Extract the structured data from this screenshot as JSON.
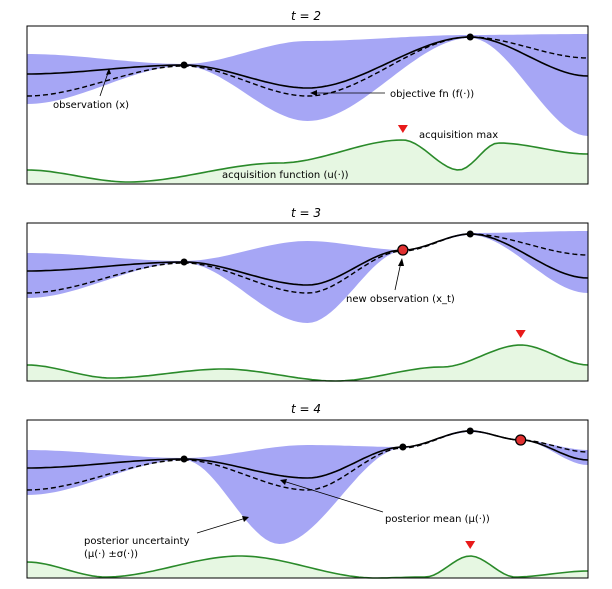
{
  "panels": [
    {
      "title": "t = 2",
      "observations": [
        [
          0.28,
          0.55
        ],
        [
          0.79,
          1.0
        ]
      ],
      "new_observations": [],
      "acq_max_x": 0.67,
      "labels": {
        "observation": "observation (x)",
        "objective": "objective fn (f(·))",
        "acq_max": "acquisition max",
        "acq_function": "acquisition function (u(·))"
      }
    },
    {
      "title": "t = 3",
      "observations": [
        [
          0.28,
          0.55
        ],
        [
          0.79,
          1.0
        ]
      ],
      "new_observations": [
        [
          0.67,
          0.75
        ]
      ],
      "acq_max_x": 0.88,
      "labels": {
        "new_observation": "new observation (x_t)"
      }
    },
    {
      "title": "t = 4",
      "observations": [
        [
          0.28,
          0.55
        ],
        [
          0.67,
          0.75
        ],
        [
          0.79,
          1.0
        ]
      ],
      "new_observations": [
        [
          0.88,
          0.72
        ]
      ],
      "acq_max_x": 0.79,
      "labels": {
        "posterior_mean": "posterior mean (μ(·))",
        "posterior_uncertainty_1": "posterior uncertainty",
        "posterior_uncertainty_2": "(μ(·) ±σ(·))"
      }
    }
  ],
  "colors": {
    "band": "#a6a6f5",
    "acq_line": "#2a8a2a",
    "acq_fill": "#e6f7e2",
    "marker": "#e81a1a",
    "new_obs": "#e03030"
  }
}
